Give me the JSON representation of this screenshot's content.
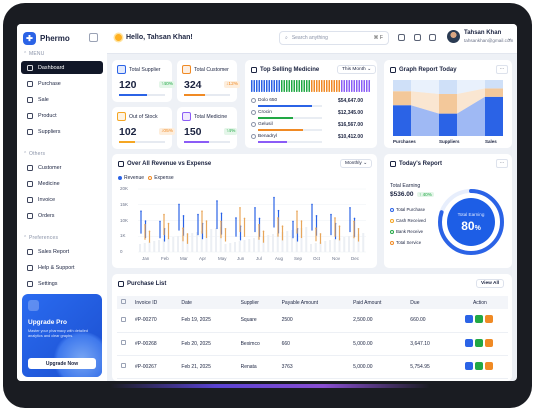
{
  "app": {
    "name": "Phermo"
  },
  "sidebar": {
    "menu_label": "MENU",
    "menu": [
      {
        "label": "Dashboard",
        "active": true
      },
      {
        "label": "Purchase"
      },
      {
        "label": "Sale"
      },
      {
        "label": "Product"
      },
      {
        "label": "Suppliers"
      }
    ],
    "others_label": "Others",
    "others": [
      {
        "label": "Customer"
      },
      {
        "label": "Medicine"
      },
      {
        "label": "Invoice"
      },
      {
        "label": "Orders"
      }
    ],
    "pref_label": "Preferences",
    "preferences": [
      {
        "label": "Sales Report"
      },
      {
        "label": "Help & Support"
      },
      {
        "label": "Settings"
      }
    ],
    "promo": {
      "title": "Upgrade Pro",
      "text": "Master your pharmacy with detailed analytics and clear graphs.",
      "button": "Upgrade Now"
    }
  },
  "topbar": {
    "greeting": "Hello, Tahsan Khan!",
    "search_placeholder": "Search anything",
    "shortcut": "⌘ F",
    "user_name": "Tahsan Khan",
    "user_email": "tahsankhan@gmail.com"
  },
  "stats": [
    {
      "label": "Total Supplier",
      "value": "120",
      "change": "40%",
      "direction": "up",
      "color": "#2b63e6",
      "progress": 0.6
    },
    {
      "label": "Total Customer",
      "value": "324",
      "change": "12%",
      "direction": "down",
      "color": "#f08a24",
      "progress": 0.45
    },
    {
      "label": "Out of Stock",
      "value": "102",
      "change": "05%",
      "direction": "down",
      "color": "#f5a623",
      "progress": 0.35
    },
    {
      "label": "Total Medicine",
      "value": "150",
      "change": "4%",
      "direction": "up",
      "color": "#8b5cf6",
      "progress": 0.55
    }
  ],
  "top_selling": {
    "title": "Top Selling Medicine",
    "period": "This Month",
    "items": [
      {
        "name": "Dolo 650",
        "price": "$54,647.00",
        "color": "#2b63e6",
        "progress": 0.85
      },
      {
        "name": "Crocin",
        "price": "$12,345.00",
        "color": "#22a845",
        "progress": 0.55
      },
      {
        "name": "Gelusil",
        "price": "$16,567.00",
        "color": "#f08a24",
        "progress": 0.7
      },
      {
        "name": "Benadryl",
        "price": "$10,412.00",
        "color": "#8b5cf6",
        "progress": 0.45
      }
    ]
  },
  "graph_report": {
    "title": "Graph Report Today",
    "categories": [
      "Purchases",
      "Suppliers",
      "Sales"
    ]
  },
  "revenue": {
    "title": "Over All Revenue vs Expense",
    "period": "Monthly",
    "legend": [
      "Revenue",
      "Expense"
    ]
  },
  "today_report": {
    "title": "Today's Report",
    "total_label": "Total Earning",
    "total_value": "$536.00",
    "change": "40%",
    "gauge_label": "Total Earning",
    "gauge_value": "80",
    "gauge_unit": "%",
    "gauge_fraction": 0.8,
    "legend": [
      {
        "label": "Total Purchase",
        "color": "#2b63e6"
      },
      {
        "label": "Cash Received",
        "color": "#f5a623"
      },
      {
        "label": "Bank Receive",
        "color": "#22a845"
      },
      {
        "label": "Total Service",
        "color": "#f08a24"
      }
    ]
  },
  "purchase_list": {
    "title": "Purchase List",
    "view_all": "View All",
    "columns": [
      "Invoice ID",
      "Date",
      "Supplier",
      "Payable Amount",
      "Paid Amount",
      "Due",
      "Action"
    ],
    "rows": [
      [
        "#P-00270",
        "Feb 19, 2025",
        "Square",
        "2500",
        "2,500.00",
        "660.00"
      ],
      [
        "#P-00268",
        "Feb 20, 2025",
        "Beximco",
        "660",
        "5,000.00",
        "3,647.10"
      ],
      [
        "#P-00267",
        "Feb 21, 2025",
        "Renata",
        "3763",
        "5,000.00",
        "5,754.95"
      ]
    ]
  },
  "colors": {
    "accent": "#2b63e6",
    "orange": "#f08a24",
    "green": "#22a845",
    "dark": "#111728"
  },
  "chart_data": [
    {
      "type": "bar",
      "title": "Graph Report Today",
      "categories": [
        "Purchases",
        "Suppliers",
        "Sales"
      ],
      "series": [
        {
          "values": [
            55,
            40,
            70
          ]
        },
        {
          "values": [
            25,
            35,
            15
          ]
        },
        {
          "values": [
            20,
            25,
            15
          ]
        }
      ]
    },
    {
      "type": "line",
      "title": "Over All Revenue vs Expense",
      "categories": [
        "Jan",
        "Feb",
        "Mar",
        "Apr",
        "May",
        "Jun",
        "Jul",
        "Aug",
        "Sep",
        "Oct",
        "Nov",
        "Dec"
      ],
      "ylim": [
        0,
        20000
      ],
      "yticks": [
        "20K",
        "15K",
        "10K",
        "1K",
        "0"
      ],
      "series": [
        {
          "name": "Revenue",
          "values": [
            12000,
            9000,
            14000,
            11000,
            15000,
            10000,
            13000,
            16000,
            9000,
            14000,
            11000,
            13000
          ]
        },
        {
          "name": "Expense",
          "values": [
            8000,
            11000,
            7000,
            12000,
            9000,
            13000,
            8000,
            10000,
            12000,
            7000,
            10000,
            9000
          ]
        }
      ]
    }
  ]
}
